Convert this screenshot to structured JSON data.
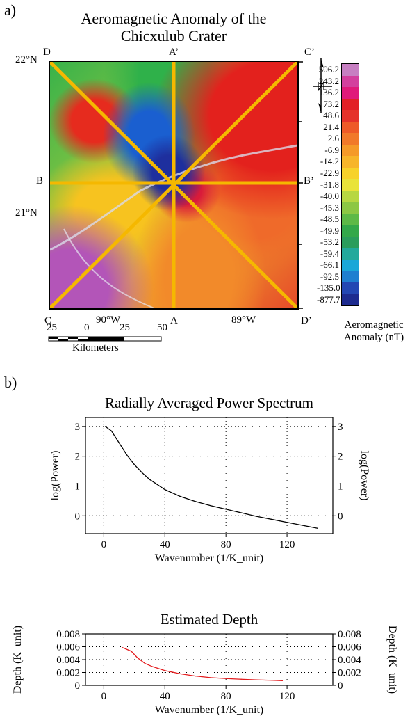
{
  "panel_a": {
    "label": "a)",
    "title_line1": "Aeromagnetic Anomaly of the",
    "title_line2": "Chicxulub Crater",
    "lat_top": "22°N",
    "lat_mid": "21°N",
    "lon_left": "90°W",
    "lon_right": "89°W",
    "profile_labels": {
      "D": "D",
      "A_prime": "A’",
      "C_prime": "C’",
      "B": "B",
      "B_prime": "B’",
      "C": "C",
      "A": "A",
      "D_prime": "D’"
    },
    "scale_ticks": [
      "25",
      "0",
      "25",
      "50"
    ],
    "scale_unit": "Kilometers",
    "colorbar_title_line1": "Aeromagnetic",
    "colorbar_title_line2": "Anomaly (nT)",
    "colorbar_values": [
      "506.2",
      "243.2",
      "136.2",
      "73.2",
      "48.6",
      "21.4",
      "2.6",
      "-6.9",
      "-14.2",
      "-22.9",
      "-31.8",
      "-40.0",
      "-45.3",
      "-48.5",
      "-49.9",
      "-53.2",
      "-59.4",
      "-66.1",
      "-92.5",
      "-135.0",
      "-877.7"
    ],
    "colorbar_colors": [
      "#c77fc2",
      "#d33f9e",
      "#e0197a",
      "#e21f26",
      "#e5322a",
      "#ee5a28",
      "#f1792a",
      "#f59a29",
      "#f7b52a",
      "#f7d22a",
      "#e9e33a",
      "#b7d742",
      "#8cc744",
      "#5db947",
      "#33a84a",
      "#2a9d5c",
      "#22a99c",
      "#1aa7d8",
      "#1f7fd0",
      "#2347b3",
      "#1d2b8f"
    ],
    "accent_line_color": "#f5b800"
  },
  "chart_data": [
    {
      "type": "line",
      "title": "Radially Averaged Power Spectrum",
      "xlabel": "Wavenumber (1/K_unit)",
      "ylabel": "log(Power)",
      "ylabel_right": "log(Power)",
      "xlim": [
        -12,
        150
      ],
      "ylim": [
        -0.6,
        3.3
      ],
      "xticks": [
        "0",
        "40",
        "80",
        "120"
      ],
      "yticks": [
        "0",
        "1",
        "2",
        "3"
      ],
      "grid": true,
      "line_color": "#000000",
      "x": [
        1,
        5,
        10,
        15,
        20,
        25,
        30,
        35,
        40,
        50,
        60,
        70,
        80,
        90,
        100,
        110,
        120,
        130,
        140
      ],
      "y": [
        3.0,
        2.85,
        2.45,
        2.05,
        1.72,
        1.45,
        1.22,
        1.05,
        0.88,
        0.65,
        0.48,
        0.34,
        0.22,
        0.1,
        -0.02,
        -0.12,
        -0.22,
        -0.32,
        -0.42
      ]
    },
    {
      "type": "line",
      "title": "Estimated Depth",
      "xlabel": "Wavenumber (1/K_unit)",
      "ylabel": "Depth (K_unit)",
      "ylabel_right": "Depth (K_unit)",
      "xlim": [
        -12,
        150
      ],
      "ylim": [
        0,
        0.008
      ],
      "xticks": [
        "0",
        "40",
        "80",
        "120"
      ],
      "yticks": [
        "0",
        "0.002",
        "0.004",
        "0.006",
        "0.008"
      ],
      "grid": true,
      "line_color": "#e31a1c",
      "x": [
        12,
        18,
        22,
        27,
        32,
        40,
        50,
        60,
        70,
        80,
        90,
        100,
        110,
        117
      ],
      "y": [
        0.0059,
        0.0053,
        0.0043,
        0.0034,
        0.0029,
        0.0023,
        0.0018,
        0.00145,
        0.0012,
        0.00105,
        0.00095,
        0.00085,
        0.00078,
        0.00072
      ]
    }
  ]
}
